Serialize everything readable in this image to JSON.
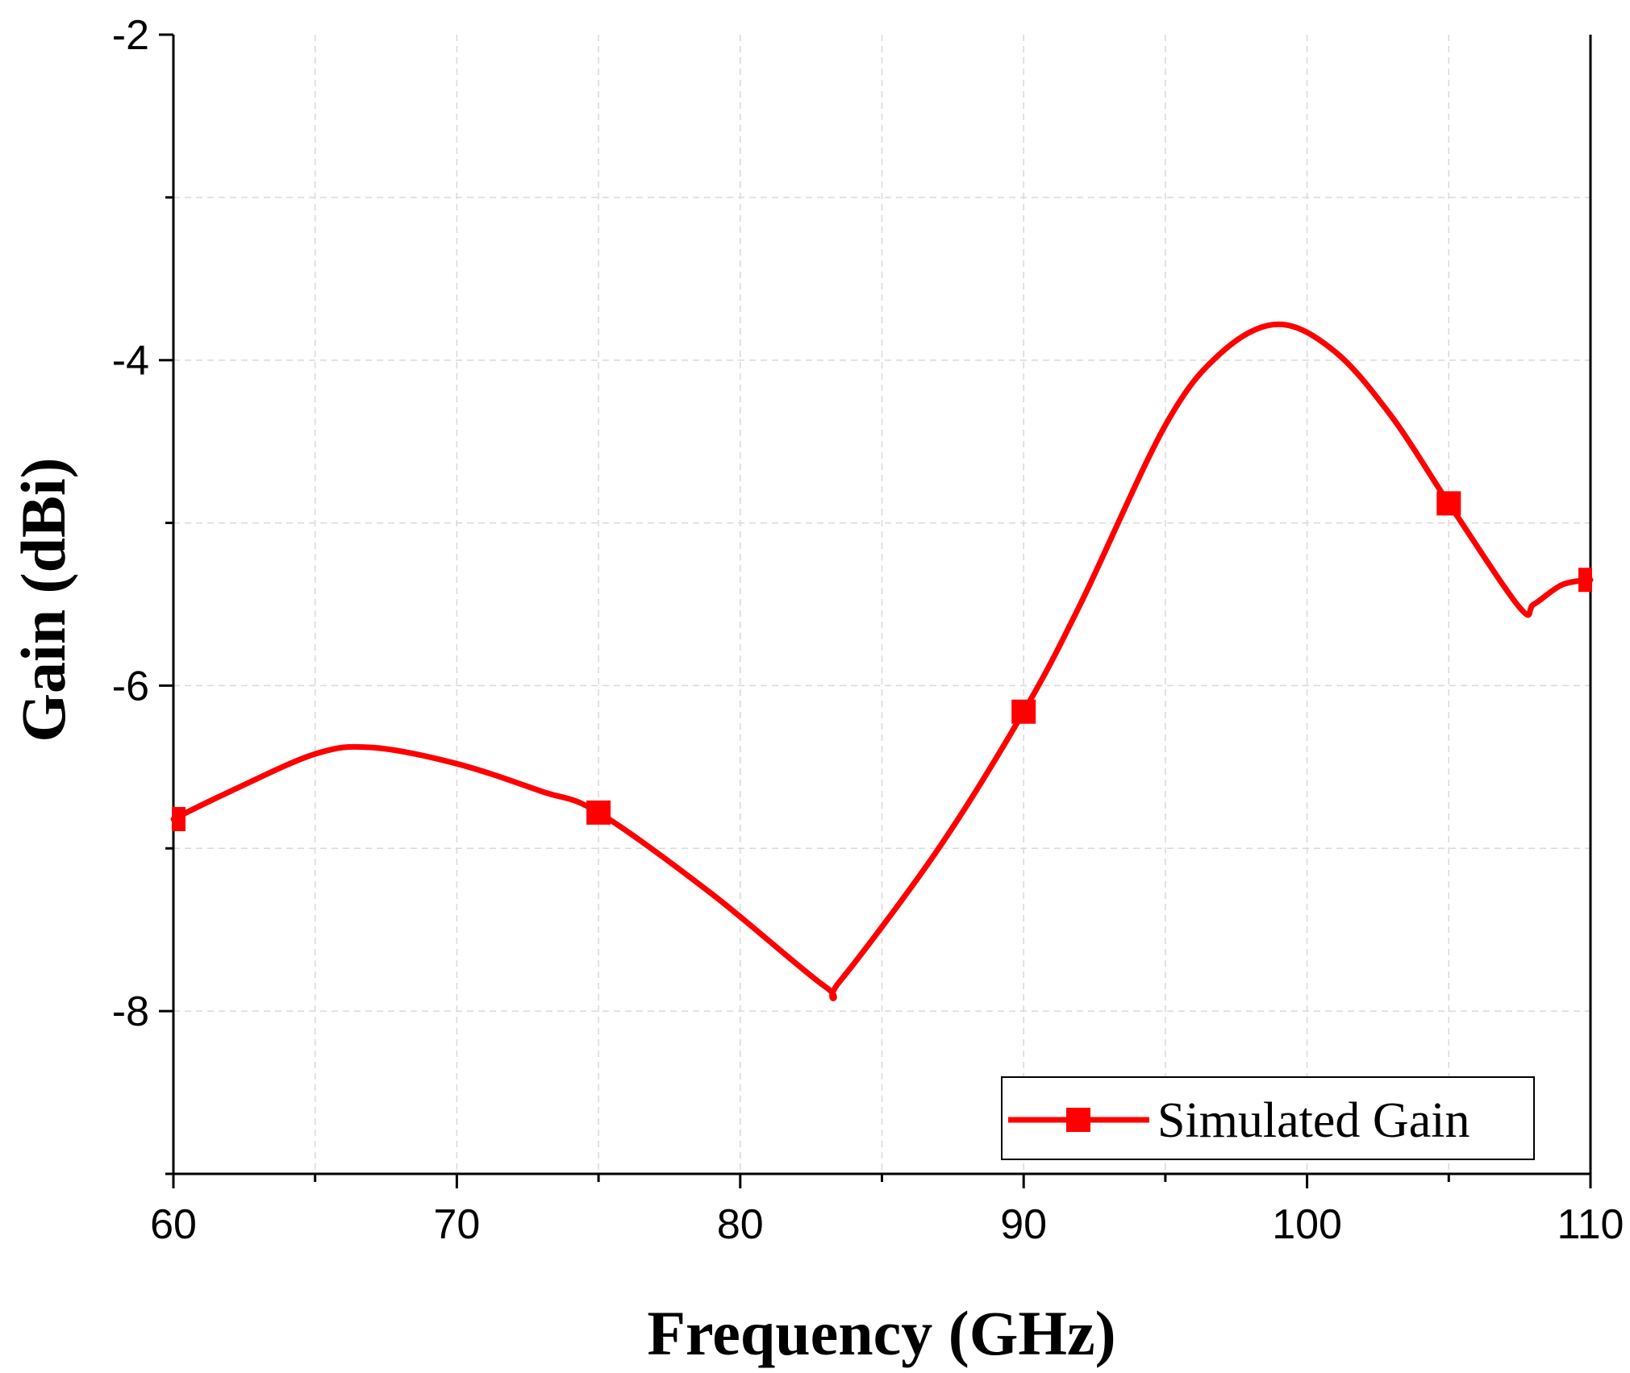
{
  "chart_data": {
    "type": "line",
    "xlabel": "Frequency (GHz)",
    "ylabel": "Gain (dBi)",
    "xlim": [
      60,
      110
    ],
    "ylim": [
      -9,
      -2
    ],
    "xticks": [
      60,
      70,
      80,
      90,
      100,
      110
    ],
    "yticks": [
      -2,
      -4,
      -6,
      -8
    ],
    "grid": true,
    "legend_position": "bottom-right",
    "series": [
      {
        "name": "Simulated Gain",
        "color": "#ff0000",
        "marker": "square",
        "marker_x": [
          60,
          75,
          90,
          105,
          110
        ],
        "x": [
          60,
          62,
          65,
          67,
          70,
          73,
          75,
          79,
          83,
          83.5,
          87,
          90,
          92,
          95,
          97,
          99,
          101,
          103,
          105,
          107.5,
          108,
          109,
          110
        ],
        "y": [
          -6.82,
          -6.65,
          -6.42,
          -6.38,
          -6.48,
          -6.65,
          -6.78,
          -7.28,
          -7.85,
          -7.82,
          -7.0,
          -6.16,
          -5.5,
          -4.4,
          -3.95,
          -3.78,
          -3.95,
          -4.35,
          -4.88,
          -5.52,
          -5.5,
          -5.38,
          -5.35
        ]
      }
    ]
  }
}
